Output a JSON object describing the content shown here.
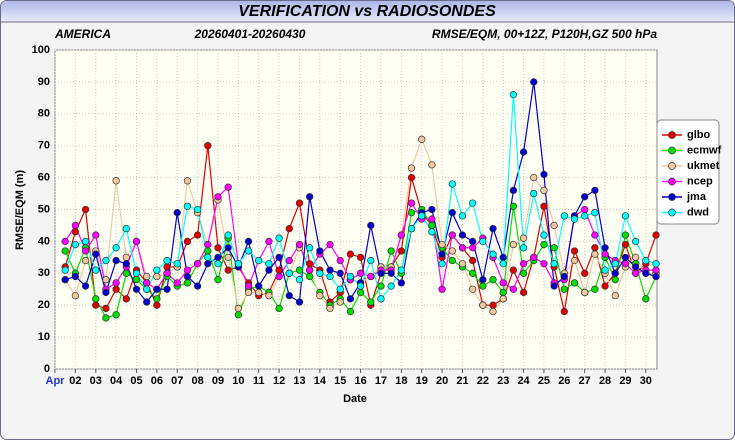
{
  "chart_data": {
    "type": "line",
    "title": "VERIFICATION vs RADIOSONDES",
    "region": "AMERICA",
    "period": "20260401-20260430",
    "score": "RMSE/EQM, 00+12Z, P120H,GZ 500 hPa",
    "ylabel": "RMSE/EQM (m)",
    "xlabel": "Date",
    "grid": true,
    "legend": "right",
    "xlim": [
      1,
      30.5
    ],
    "ylim": [
      0,
      100
    ],
    "yticks": [
      0,
      10,
      20,
      30,
      40,
      50,
      60,
      70,
      80,
      90,
      100
    ],
    "xticks": [
      {
        "value": 1,
        "label": "Apr"
      },
      {
        "value": 2,
        "label": "02"
      },
      {
        "value": 3,
        "label": "03"
      },
      {
        "value": 4,
        "label": "04"
      },
      {
        "value": 5,
        "label": "05"
      },
      {
        "value": 6,
        "label": "06"
      },
      {
        "value": 7,
        "label": "07"
      },
      {
        "value": 8,
        "label": "08"
      },
      {
        "value": 9,
        "label": "09"
      },
      {
        "value": 10,
        "label": "10"
      },
      {
        "value": 11,
        "label": "11"
      },
      {
        "value": 12,
        "label": "12"
      },
      {
        "value": 13,
        "label": "13"
      },
      {
        "value": 14,
        "label": "14"
      },
      {
        "value": 15,
        "label": "15"
      },
      {
        "value": 16,
        "label": "16"
      },
      {
        "value": 17,
        "label": "17"
      },
      {
        "value": 18,
        "label": "18"
      },
      {
        "value": 19,
        "label": "19"
      },
      {
        "value": 20,
        "label": "20"
      },
      {
        "value": 21,
        "label": "21"
      },
      {
        "value": 22,
        "label": "22"
      },
      {
        "value": 23,
        "label": "23"
      },
      {
        "value": 24,
        "label": "24"
      },
      {
        "value": 25,
        "label": "25"
      },
      {
        "value": 26,
        "label": "26"
      },
      {
        "value": 27,
        "label": "27"
      },
      {
        "value": 28,
        "label": "28"
      },
      {
        "value": 29,
        "label": "29"
      },
      {
        "value": 30,
        "label": "30"
      }
    ],
    "x": [
      1.5,
      2,
      2.5,
      3,
      3.5,
      4,
      4.5,
      5,
      5.5,
      6,
      6.5,
      7,
      7.5,
      8,
      8.5,
      9,
      9.5,
      10,
      10.5,
      11,
      11.5,
      12,
      12.5,
      13,
      13.5,
      14,
      14.5,
      15,
      15.5,
      16,
      16.5,
      17,
      17.5,
      18,
      18.5,
      19,
      19.5,
      20,
      20.5,
      21,
      21.5,
      22,
      22.5,
      23,
      23.5,
      24,
      24.5,
      25,
      25.5,
      26,
      26.5,
      27,
      27.5,
      28,
      28.5,
      29,
      29.5,
      30,
      30.5
    ],
    "series": [
      {
        "name": "glbo",
        "color": "#e00000",
        "values": [
          32,
          43,
          50,
          20,
          19,
          25,
          22,
          31,
          27,
          20,
          32,
          32,
          40,
          42,
          70,
          38,
          31,
          32,
          27,
          23,
          24,
          31,
          44,
          52,
          33,
          31,
          21,
          24,
          36,
          35,
          20,
          30,
          32,
          37,
          60,
          49,
          45,
          35,
          42,
          38,
          34,
          20,
          20,
          22,
          31,
          24,
          35,
          51,
          32,
          18,
          37,
          30,
          38,
          26,
          30,
          39,
          30,
          33,
          42
        ]
      },
      {
        "name": "ecmwf",
        "color": "#00e000",
        "values": [
          37,
          30,
          38,
          22,
          16,
          17,
          30,
          28,
          25,
          22,
          29,
          26,
          27,
          33,
          37,
          28,
          41,
          17,
          25,
          26,
          24,
          19,
          30,
          31,
          29,
          24,
          20,
          22,
          18,
          24,
          21,
          26,
          37,
          30,
          49,
          50,
          45,
          38,
          34,
          32,
          30,
          26,
          28,
          24,
          51,
          30,
          34,
          39,
          38,
          25,
          27,
          24,
          25,
          35,
          28,
          42,
          33,
          22,
          29
        ]
      },
      {
        "name": "ukmet",
        "color": "#f0c8a0",
        "values": [
          28,
          23,
          34,
          37,
          28,
          59,
          35,
          40,
          29,
          29,
          30,
          32,
          59,
          49,
          39,
          53,
          35,
          19,
          24,
          24,
          23,
          29,
          30,
          38,
          31,
          23,
          19,
          21,
          28,
          27,
          29,
          32,
          32,
          42,
          63,
          72,
          64,
          39,
          37,
          33,
          25,
          20,
          18,
          22,
          39,
          41,
          60,
          56,
          45,
          30,
          34,
          24,
          36,
          30,
          23,
          32,
          35,
          30,
          30
        ]
      },
      {
        "name": "ncep",
        "color": "#ff00ff",
        "values": [
          40,
          45,
          37,
          42,
          25,
          27,
          32,
          40,
          27,
          25,
          30,
          27,
          31,
          33,
          39,
          54,
          57,
          33,
          26,
          34,
          40,
          29,
          34,
          39,
          31,
          36,
          39,
          34,
          28,
          30,
          29,
          31,
          31,
          42,
          52,
          47,
          47,
          25,
          42,
          38,
          38,
          41,
          35,
          27,
          25,
          33,
          35,
          33,
          27,
          28,
          48,
          50,
          42,
          36,
          34,
          33,
          30,
          31,
          31
        ]
      },
      {
        "name": "jma",
        "color": "#0000cc",
        "values": [
          28,
          29,
          26,
          36,
          24,
          34,
          33,
          25,
          21,
          25,
          25,
          49,
          29,
          26,
          33,
          35,
          38,
          32,
          40,
          26,
          31,
          35,
          23,
          21,
          54,
          37,
          31,
          30,
          22,
          27,
          45,
          30,
          30,
          27,
          44,
          49,
          50,
          36,
          49,
          42,
          40,
          28,
          44,
          35,
          56,
          68,
          90,
          61,
          26,
          29,
          48,
          54,
          56,
          38,
          30,
          35,
          32,
          30,
          29
        ]
      },
      {
        "name": "dwd",
        "color": "#00ffff",
        "values": [
          31,
          39,
          40,
          31,
          34,
          38,
          44,
          30,
          25,
          31,
          34,
          33,
          51,
          50,
          35,
          33,
          42,
          33,
          37,
          34,
          33,
          41,
          30,
          28,
          38,
          30,
          29,
          25,
          29,
          26,
          34,
          22,
          26,
          31,
          44,
          48,
          43,
          33,
          58,
          48,
          52,
          40,
          36,
          33,
          86,
          38,
          55,
          42,
          33,
          48,
          47,
          48,
          49,
          31,
          33,
          48,
          40,
          34,
          33
        ]
      }
    ]
  }
}
